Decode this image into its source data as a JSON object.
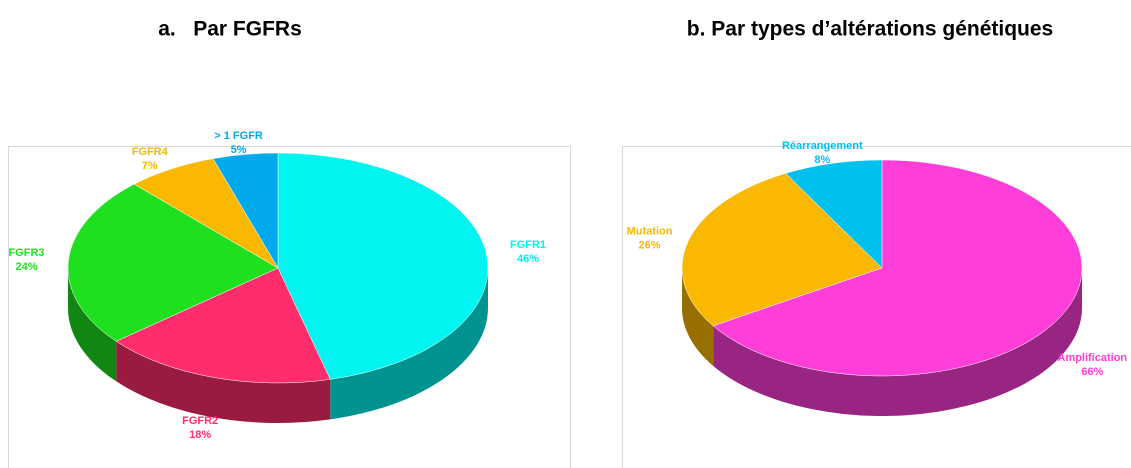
{
  "chart_data": [
    {
      "type": "pie3d",
      "title": "a.   Par FGFRs",
      "categories": [
        "FGFR1",
        "FGFR2",
        "FGFR3",
        "FGFR4",
        "> 1 FGFR"
      ],
      "values": [
        46,
        18,
        24,
        7,
        5
      ],
      "value_labels": [
        "46%",
        "18%",
        "24%",
        "7%",
        "5%"
      ],
      "colors": [
        "#00f5f0",
        "#ff2d6b",
        "#1ee01e",
        "#fbb800",
        "#00a8ec"
      ]
    },
    {
      "type": "pie3d",
      "title": "b. Par types d’altérations génétiques",
      "categories": [
        "Amplification",
        "Mutation",
        "Réarrangement"
      ],
      "values": [
        66,
        26,
        8
      ],
      "value_labels": [
        "66%",
        "26%",
        "8%"
      ],
      "colors": [
        "#ff3dd8",
        "#fbb800",
        "#00c0f0"
      ]
    }
  ]
}
